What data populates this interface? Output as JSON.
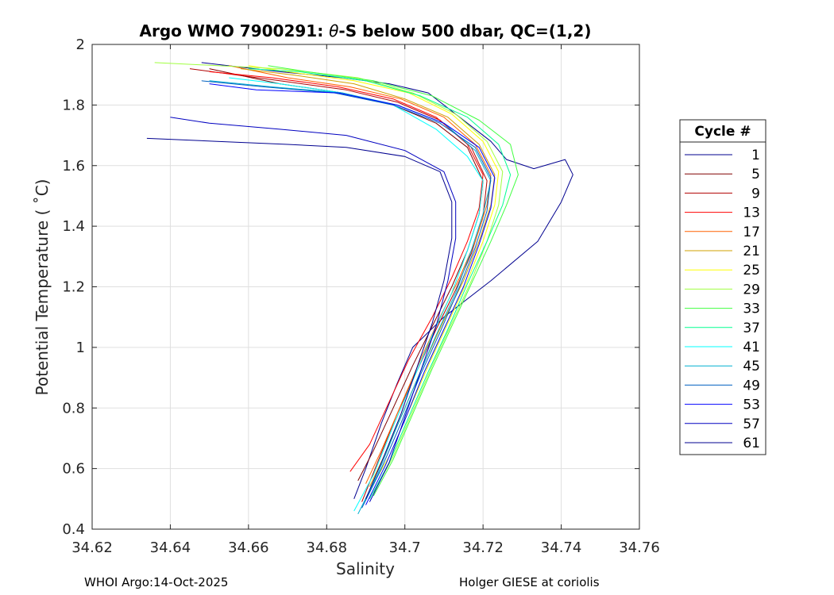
{
  "chart_data": {
    "type": "line",
    "title": "Argo WMO 7900291: θ-S below 500 dbar,  QC=(1,2)",
    "title_parts": {
      "prefix": "Argo WMO 7900291: ",
      "symbol": "θ",
      "suffix": "-S below 500 dbar,  QC=(1,2)"
    },
    "xlabel": "Salinity",
    "ylabel": "Potential Temperature ( ˚C)",
    "xlim": [
      34.62,
      34.76
    ],
    "ylim": [
      0.4,
      2.0
    ],
    "xticks": [
      "34.62",
      "34.64",
      "34.66",
      "34.68",
      "34.7",
      "34.72",
      "34.74",
      "34.76"
    ],
    "yticks": [
      "0.4",
      "0.6",
      "0.8",
      "1",
      "1.2",
      "1.4",
      "1.6",
      "1.8",
      "2"
    ],
    "grid": true,
    "legend_title": "Cycle #",
    "legend_position": "right",
    "series": [
      {
        "name": "1",
        "color": "#00008f",
        "points": [
          [
            34.687,
            0.5
          ],
          [
            34.69,
            0.6
          ],
          [
            34.694,
            0.75
          ],
          [
            34.698,
            0.88
          ],
          [
            34.702,
            1.0
          ],
          [
            34.71,
            1.1
          ],
          [
            34.722,
            1.22
          ],
          [
            34.734,
            1.35
          ],
          [
            34.74,
            1.48
          ],
          [
            34.743,
            1.57
          ],
          [
            34.741,
            1.62
          ],
          [
            34.733,
            1.59
          ],
          [
            34.726,
            1.62
          ],
          [
            34.722,
            1.68
          ],
          [
            34.714,
            1.76
          ],
          [
            34.706,
            1.84
          ],
          [
            34.696,
            1.87
          ],
          [
            34.684,
            1.89
          ],
          [
            34.668,
            1.91
          ],
          [
            34.648,
            1.94
          ]
        ]
      },
      {
        "name": "5",
        "color": "#800000",
        "points": [
          [
            34.688,
            0.56
          ],
          [
            34.692,
            0.66
          ],
          [
            34.697,
            0.8
          ],
          [
            34.702,
            0.94
          ],
          [
            34.707,
            1.07
          ],
          [
            34.712,
            1.2
          ],
          [
            34.716,
            1.32
          ],
          [
            34.719,
            1.44
          ],
          [
            34.72,
            1.55
          ],
          [
            34.716,
            1.66
          ],
          [
            34.708,
            1.74
          ],
          [
            34.697,
            1.8
          ],
          [
            34.684,
            1.84
          ],
          [
            34.668,
            1.87
          ],
          [
            34.65,
            1.92
          ]
        ]
      },
      {
        "name": "9",
        "color": "#b00000",
        "points": [
          [
            34.689,
            0.49
          ],
          [
            34.693,
            0.62
          ],
          [
            34.698,
            0.78
          ],
          [
            34.703,
            0.92
          ],
          [
            34.708,
            1.06
          ],
          [
            34.713,
            1.19
          ],
          [
            34.717,
            1.31
          ],
          [
            34.72,
            1.43
          ],
          [
            34.721,
            1.55
          ],
          [
            34.717,
            1.66
          ],
          [
            34.709,
            1.75
          ],
          [
            34.698,
            1.81
          ],
          [
            34.685,
            1.85
          ],
          [
            34.668,
            1.88
          ],
          [
            34.645,
            1.92
          ]
        ]
      },
      {
        "name": "13",
        "color": "#ff0000",
        "points": [
          [
            34.686,
            0.59
          ],
          [
            34.691,
            0.68
          ],
          [
            34.696,
            0.82
          ],
          [
            34.701,
            0.96
          ],
          [
            34.707,
            1.1
          ],
          [
            34.712,
            1.23
          ],
          [
            34.716,
            1.35
          ],
          [
            34.719,
            1.46
          ],
          [
            34.72,
            1.57
          ],
          [
            34.716,
            1.67
          ],
          [
            34.708,
            1.76
          ],
          [
            34.697,
            1.82
          ],
          [
            34.683,
            1.86
          ],
          [
            34.666,
            1.89
          ],
          [
            34.65,
            1.91
          ]
        ]
      },
      {
        "name": "17",
        "color": "#ff6000",
        "points": [
          [
            34.69,
            0.55
          ],
          [
            34.694,
            0.66
          ],
          [
            34.699,
            0.81
          ],
          [
            34.704,
            0.96
          ],
          [
            34.709,
            1.1
          ],
          [
            34.714,
            1.23
          ],
          [
            34.718,
            1.35
          ],
          [
            34.721,
            1.47
          ],
          [
            34.722,
            1.57
          ],
          [
            34.718,
            1.67
          ],
          [
            34.71,
            1.76
          ],
          [
            34.699,
            1.82
          ],
          [
            34.686,
            1.86
          ],
          [
            34.67,
            1.89
          ],
          [
            34.655,
            1.93
          ]
        ]
      },
      {
        "name": "21",
        "color": "#d0a000",
        "points": [
          [
            34.691,
            0.54
          ],
          [
            34.695,
            0.65
          ],
          [
            34.7,
            0.8
          ],
          [
            34.705,
            0.95
          ],
          [
            34.71,
            1.09
          ],
          [
            34.715,
            1.22
          ],
          [
            34.719,
            1.35
          ],
          [
            34.722,
            1.47
          ],
          [
            34.723,
            1.57
          ],
          [
            34.719,
            1.67
          ],
          [
            34.711,
            1.76
          ],
          [
            34.7,
            1.82
          ],
          [
            34.687,
            1.87
          ],
          [
            34.671,
            1.9
          ],
          [
            34.658,
            1.92
          ]
        ]
      },
      {
        "name": "25",
        "color": "#ffff00",
        "points": [
          [
            34.691,
            0.53
          ],
          [
            34.696,
            0.64
          ],
          [
            34.701,
            0.79
          ],
          [
            34.706,
            0.94
          ],
          [
            34.711,
            1.08
          ],
          [
            34.716,
            1.22
          ],
          [
            34.72,
            1.35
          ],
          [
            34.723,
            1.47
          ],
          [
            34.724,
            1.58
          ],
          [
            34.72,
            1.68
          ],
          [
            34.712,
            1.77
          ],
          [
            34.701,
            1.84
          ],
          [
            34.687,
            1.88
          ],
          [
            34.67,
            1.91
          ],
          [
            34.66,
            1.93
          ]
        ]
      },
      {
        "name": "29",
        "color": "#a0ff40",
        "points": [
          [
            34.692,
            0.52
          ],
          [
            34.697,
            0.64
          ],
          [
            34.702,
            0.79
          ],
          [
            34.707,
            0.94
          ],
          [
            34.712,
            1.08
          ],
          [
            34.717,
            1.22
          ],
          [
            34.721,
            1.35
          ],
          [
            34.724,
            1.47
          ],
          [
            34.725,
            1.58
          ],
          [
            34.721,
            1.68
          ],
          [
            34.713,
            1.77
          ],
          [
            34.702,
            1.84
          ],
          [
            34.688,
            1.89
          ],
          [
            34.668,
            1.92
          ],
          [
            34.636,
            1.94
          ]
        ]
      },
      {
        "name": "33",
        "color": "#40ff40",
        "points": [
          [
            34.692,
            0.51
          ],
          [
            34.697,
            0.63
          ],
          [
            34.702,
            0.78
          ],
          [
            34.707,
            0.93
          ],
          [
            34.712,
            1.07
          ],
          [
            34.717,
            1.21
          ],
          [
            34.722,
            1.35
          ],
          [
            34.726,
            1.47
          ],
          [
            34.729,
            1.57
          ],
          [
            34.727,
            1.67
          ],
          [
            34.719,
            1.75
          ],
          [
            34.707,
            1.83
          ],
          [
            34.692,
            1.88
          ],
          [
            34.675,
            1.91
          ],
          [
            34.665,
            1.93
          ]
        ]
      },
      {
        "name": "37",
        "color": "#00ff90",
        "points": [
          [
            34.691,
            0.5
          ],
          [
            34.696,
            0.62
          ],
          [
            34.701,
            0.77
          ],
          [
            34.706,
            0.92
          ],
          [
            34.711,
            1.06
          ],
          [
            34.716,
            1.21
          ],
          [
            34.721,
            1.35
          ],
          [
            34.725,
            1.47
          ],
          [
            34.727,
            1.57
          ],
          [
            34.724,
            1.67
          ],
          [
            34.716,
            1.76
          ],
          [
            34.704,
            1.83
          ],
          [
            34.69,
            1.88
          ],
          [
            34.673,
            1.91
          ],
          [
            34.66,
            1.92
          ]
        ]
      },
      {
        "name": "41",
        "color": "#00ffff",
        "points": [
          [
            34.687,
            0.46
          ],
          [
            34.692,
            0.58
          ],
          [
            34.697,
            0.74
          ],
          [
            34.702,
            0.89
          ],
          [
            34.707,
            1.04
          ],
          [
            34.712,
            1.18
          ],
          [
            34.716,
            1.32
          ],
          [
            34.719,
            1.44
          ],
          [
            34.72,
            1.55
          ],
          [
            34.716,
            1.63
          ],
          [
            34.708,
            1.72
          ],
          [
            34.697,
            1.8
          ],
          [
            34.684,
            1.84
          ],
          [
            34.668,
            1.87
          ],
          [
            34.655,
            1.89
          ]
        ]
      },
      {
        "name": "45",
        "color": "#00b0d0",
        "points": [
          [
            34.688,
            0.45
          ],
          [
            34.693,
            0.58
          ],
          [
            34.698,
            0.74
          ],
          [
            34.703,
            0.89
          ],
          [
            34.708,
            1.04
          ],
          [
            34.713,
            1.18
          ],
          [
            34.717,
            1.32
          ],
          [
            34.72,
            1.44
          ],
          [
            34.722,
            1.55
          ],
          [
            34.718,
            1.65
          ],
          [
            34.71,
            1.74
          ],
          [
            34.698,
            1.8
          ],
          [
            34.684,
            1.84
          ],
          [
            34.666,
            1.86
          ],
          [
            34.65,
            1.88
          ]
        ]
      },
      {
        "name": "49",
        "color": "#0060c0",
        "points": [
          [
            34.689,
            0.47
          ],
          [
            34.694,
            0.6
          ],
          [
            34.699,
            0.75
          ],
          [
            34.704,
            0.91
          ],
          [
            34.709,
            1.05
          ],
          [
            34.714,
            1.2
          ],
          [
            34.718,
            1.33
          ],
          [
            34.721,
            1.45
          ],
          [
            34.722,
            1.56
          ],
          [
            34.718,
            1.66
          ],
          [
            34.709,
            1.74
          ],
          [
            34.697,
            1.8
          ],
          [
            34.682,
            1.84
          ],
          [
            34.664,
            1.86
          ],
          [
            34.648,
            1.88
          ]
        ]
      },
      {
        "name": "53",
        "color": "#0000ff",
        "points": [
          [
            34.69,
            0.48
          ],
          [
            34.695,
            0.61
          ],
          [
            34.7,
            0.76
          ],
          [
            34.705,
            0.92
          ],
          [
            34.71,
            1.06
          ],
          [
            34.715,
            1.2
          ],
          [
            34.719,
            1.34
          ],
          [
            34.722,
            1.46
          ],
          [
            34.723,
            1.56
          ],
          [
            34.719,
            1.66
          ],
          [
            34.71,
            1.74
          ],
          [
            34.698,
            1.8
          ],
          [
            34.683,
            1.84
          ],
          [
            34.662,
            1.85
          ],
          [
            34.65,
            1.87
          ]
        ]
      },
      {
        "name": "57",
        "color": "#0000c0",
        "points": [
          [
            34.691,
            0.49
          ],
          [
            34.696,
            0.62
          ],
          [
            34.7,
            0.77
          ],
          [
            34.704,
            0.92
          ],
          [
            34.708,
            1.07
          ],
          [
            34.711,
            1.22
          ],
          [
            34.713,
            1.36
          ],
          [
            34.713,
            1.48
          ],
          [
            34.71,
            1.58
          ],
          [
            34.7,
            1.65
          ],
          [
            34.685,
            1.7
          ],
          [
            34.668,
            1.72
          ],
          [
            34.65,
            1.74
          ],
          [
            34.64,
            1.76
          ]
        ]
      },
      {
        "name": "61",
        "color": "#00008f",
        "points": [
          [
            34.69,
            0.5
          ],
          [
            34.694,
            0.62
          ],
          [
            34.699,
            0.78
          ],
          [
            34.703,
            0.93
          ],
          [
            34.707,
            1.08
          ],
          [
            34.71,
            1.22
          ],
          [
            34.712,
            1.36
          ],
          [
            34.712,
            1.48
          ],
          [
            34.709,
            1.58
          ],
          [
            34.7,
            1.63
          ],
          [
            34.685,
            1.66
          ],
          [
            34.67,
            1.67
          ],
          [
            34.652,
            1.68
          ],
          [
            34.634,
            1.69
          ]
        ]
      }
    ]
  },
  "footer": {
    "left": "WHOI Argo:14-Oct-2025",
    "right": "Holger GIESE at coriolis"
  }
}
